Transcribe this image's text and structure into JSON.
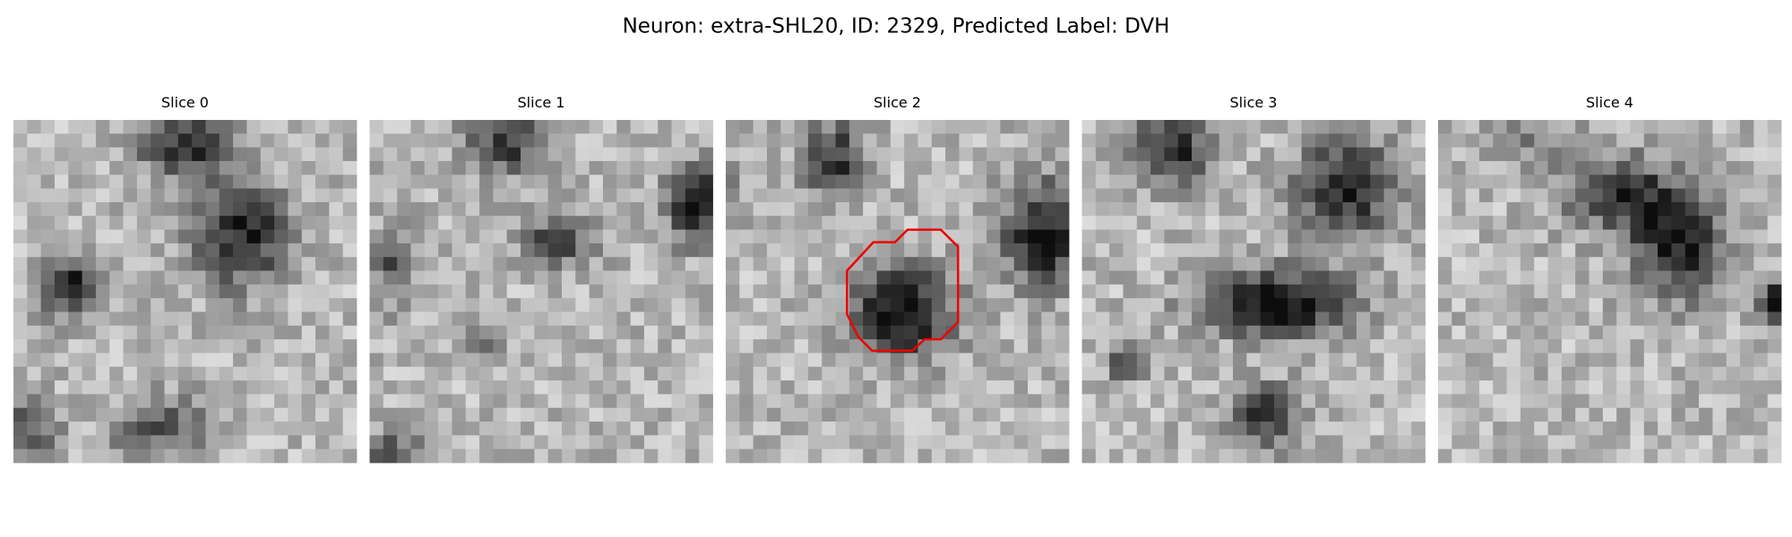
{
  "title": "Neuron: extra-SHL20, ID: 2329, Predicted Label: DVH",
  "panels": [
    {
      "label": "Slice 0"
    },
    {
      "label": "Slice 1"
    },
    {
      "label": "Slice 2"
    },
    {
      "label": "Slice 3"
    },
    {
      "label": "Slice 4"
    }
  ]
}
